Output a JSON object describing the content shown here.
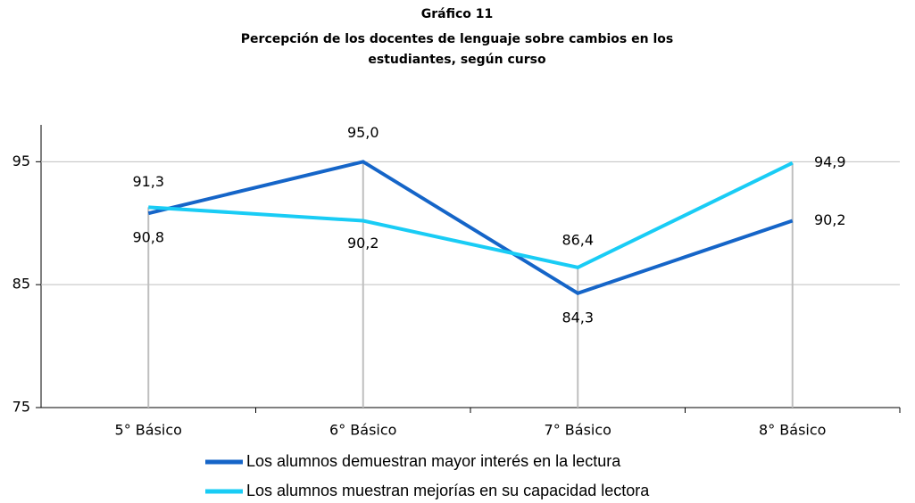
{
  "chart_data": {
    "type": "line",
    "title": "Gráfico 11",
    "subtitle": "Percepción de los docentes de lenguaje sobre cambios en los estudiantes, según curso",
    "categories": [
      "5° Básico",
      "6° Básico",
      "7° Básico",
      "8° Básico"
    ],
    "series": [
      {
        "name": "Los alumnos demuestran mayor interés en la lectura",
        "color": "#1565c8",
        "values": [
          90.8,
          95.0,
          84.3,
          90.2
        ],
        "value_labels": [
          "90,8",
          "95,0",
          "84,3",
          "90,2"
        ]
      },
      {
        "name": "Los alumnos muestran mejorías en su capacidad lectora",
        "color": "#19ccf5",
        "values": [
          91.3,
          90.2,
          86.4,
          94.9
        ],
        "value_labels": [
          "91,3",
          "90,2",
          "86,4",
          "94,9"
        ]
      }
    ],
    "ylim": [
      75,
      98
    ],
    "yticks": [
      75,
      85,
      95
    ],
    "grid": true
  }
}
